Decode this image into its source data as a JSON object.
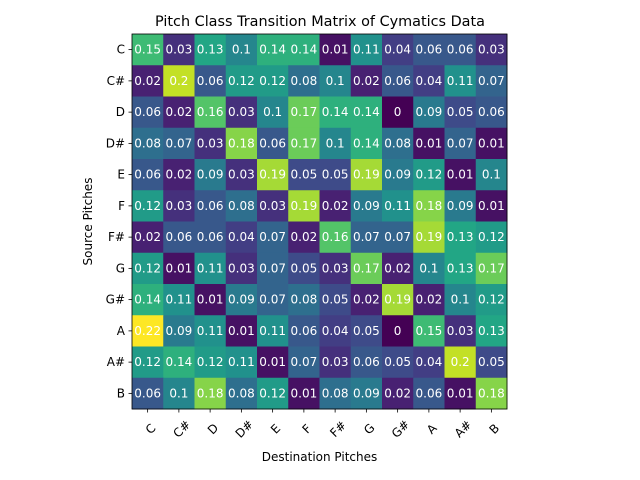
{
  "chart_data": {
    "type": "heatmap",
    "title": "Pitch Class Transition Matrix of Cymatics Data",
    "xlabel": "Destination Pitches",
    "ylabel": "Source Pitches",
    "x_categories": [
      "C",
      "C#",
      "D",
      "D#",
      "E",
      "F",
      "F#",
      "G",
      "G#",
      "A",
      "A#",
      "B"
    ],
    "y_categories": [
      "C",
      "C#",
      "D",
      "D#",
      "E",
      "F",
      "F#",
      "G",
      "G#",
      "A",
      "A#",
      "B"
    ],
    "colormap": "viridis",
    "color_range": [
      0.0,
      0.22
    ],
    "values": [
      [
        0.15,
        0.03,
        0.13,
        0.1,
        0.14,
        0.14,
        0.01,
        0.11,
        0.04,
        0.06,
        0.06,
        0.03
      ],
      [
        0.02,
        0.2,
        0.06,
        0.12,
        0.12,
        0.08,
        0.1,
        0.02,
        0.06,
        0.04,
        0.11,
        0.07
      ],
      [
        0.06,
        0.02,
        0.16,
        0.03,
        0.1,
        0.17,
        0.14,
        0.14,
        0.0,
        0.09,
        0.05,
        0.06
      ],
      [
        0.08,
        0.07,
        0.03,
        0.18,
        0.06,
        0.17,
        0.1,
        0.14,
        0.08,
        0.01,
        0.07,
        0.01
      ],
      [
        0.06,
        0.02,
        0.09,
        0.03,
        0.19,
        0.05,
        0.05,
        0.19,
        0.09,
        0.12,
        0.01,
        0.1
      ],
      [
        0.12,
        0.03,
        0.06,
        0.08,
        0.03,
        0.19,
        0.02,
        0.09,
        0.11,
        0.18,
        0.09,
        0.01
      ],
      [
        0.02,
        0.06,
        0.06,
        0.04,
        0.07,
        0.02,
        0.16,
        0.07,
        0.07,
        0.19,
        0.13,
        0.12
      ],
      [
        0.12,
        0.01,
        0.11,
        0.03,
        0.07,
        0.05,
        0.03,
        0.17,
        0.02,
        0.1,
        0.13,
        0.17
      ],
      [
        0.14,
        0.11,
        0.01,
        0.09,
        0.07,
        0.08,
        0.05,
        0.02,
        0.19,
        0.02,
        0.1,
        0.12
      ],
      [
        0.22,
        0.09,
        0.11,
        0.01,
        0.11,
        0.06,
        0.04,
        0.05,
        0.0,
        0.15,
        0.03,
        0.13
      ],
      [
        0.12,
        0.14,
        0.12,
        0.11,
        0.01,
        0.07,
        0.03,
        0.06,
        0.05,
        0.04,
        0.2,
        0.05
      ],
      [
        0.06,
        0.1,
        0.18,
        0.08,
        0.12,
        0.01,
        0.08,
        0.09,
        0.02,
        0.06,
        0.01,
        0.18
      ]
    ]
  }
}
